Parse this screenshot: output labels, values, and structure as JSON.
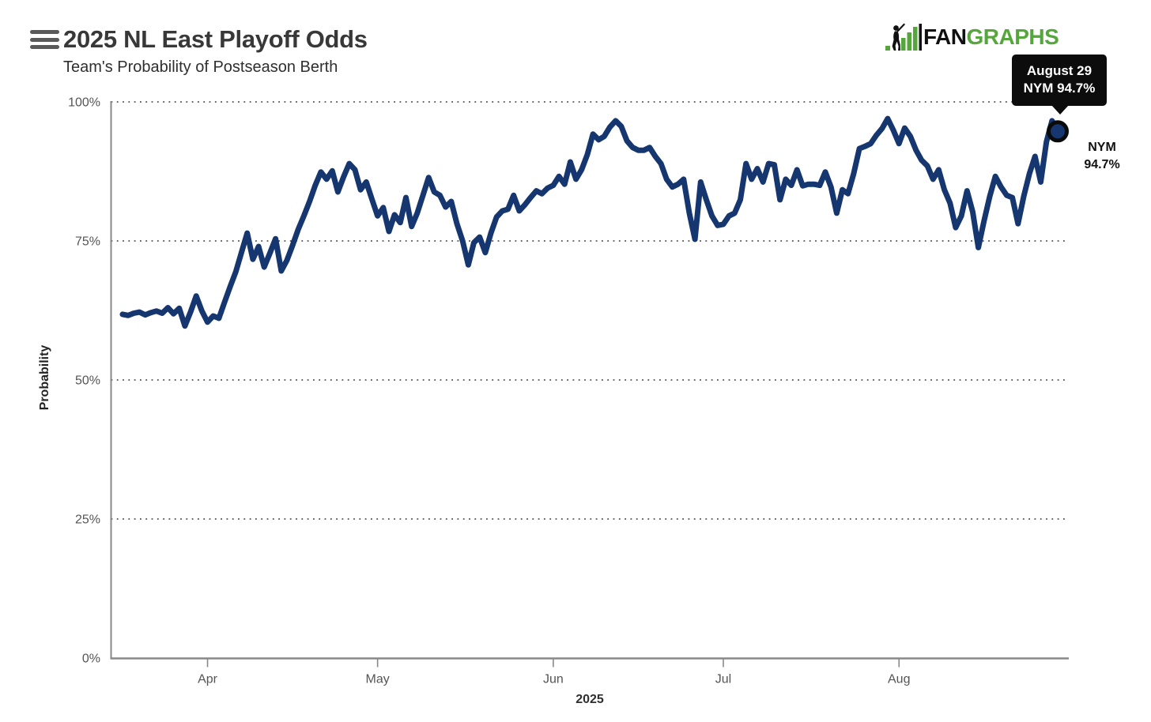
{
  "header": {
    "title": "2025 NL East Playoff Odds",
    "subtitle": "Team's Probability of Postseason Berth",
    "menu_icon": "hamburger-menu-icon"
  },
  "logo": {
    "icon": "fangraphs-batter-bars-icon",
    "fan": "FAN",
    "graphs": "GRAPHS"
  },
  "tooltip": {
    "line1": "August 29",
    "line2": "NYM 94.7%"
  },
  "endpoint_label": {
    "team": "NYM",
    "value": "94.7%"
  },
  "colors": {
    "line": "#15366f",
    "marker_ring": "#0a0a0a",
    "logo_green": "#55a63c",
    "tooltip_bg": "#0c0c0c",
    "tooltip_text": "#ffffff",
    "axis": "#888888",
    "grid_dots": "#333333",
    "tick_text": "#555555"
  },
  "chart_data": {
    "type": "line",
    "title": "2025 NL East Playoff Odds",
    "subtitle": "Team's Probability of Postseason Berth",
    "xlabel": "2025",
    "ylabel": "Probability",
    "ylim": [
      0,
      100
    ],
    "grid": "horizontal dotted at 25/50/75/100",
    "legend_position": "none",
    "y_ticks": [
      {
        "label": "100%",
        "value": 100
      },
      {
        "label": "75%",
        "value": 75
      },
      {
        "label": "50%",
        "value": 50
      },
      {
        "label": "25%",
        "value": 25
      },
      {
        "label": "0%",
        "value": 0
      }
    ],
    "x_ticks": [
      {
        "label": "Apr",
        "index": 15
      },
      {
        "label": "May",
        "index": 45
      },
      {
        "label": "Jun",
        "index": 76
      },
      {
        "label": "Jul",
        "index": 106
      },
      {
        "label": "Aug",
        "index": 137
      }
    ],
    "x_range": "March 17 to August 29, daily",
    "series": [
      {
        "name": "NYM",
        "color": "#15366f",
        "final_value": 94.7,
        "final_date": "August 29",
        "values": [
          61.8,
          61.6,
          62.0,
          62.2,
          61.7,
          62.1,
          62.4,
          62.0,
          63.0,
          61.9,
          62.9,
          59.7,
          62.2,
          65.1,
          62.4,
          60.4,
          61.5,
          61.1,
          64.0,
          66.8,
          69.5,
          73.0,
          76.4,
          71.7,
          74.0,
          70.3,
          72.8,
          75.4,
          69.6,
          71.5,
          74.2,
          77.1,
          79.5,
          82.1,
          85.0,
          87.4,
          86.1,
          87.6,
          83.8,
          86.5,
          88.9,
          87.8,
          84.2,
          85.6,
          82.5,
          79.5,
          81.0,
          76.7,
          79.7,
          78.3,
          82.8,
          77.6,
          80.0,
          83.2,
          86.4,
          83.8,
          83.2,
          81.1,
          82.1,
          78.1,
          75.0,
          70.7,
          74.7,
          75.7,
          72.9,
          76.4,
          79.3,
          80.4,
          80.7,
          83.2,
          80.4,
          81.5,
          82.8,
          84.0,
          83.5,
          84.5,
          85.0,
          86.6,
          85.2,
          89.2,
          86.1,
          87.8,
          90.5,
          94.2,
          93.2,
          93.8,
          95.5,
          96.6,
          95.6,
          93.0,
          91.8,
          91.3,
          91.3,
          91.8,
          90.2,
          88.9,
          86.1,
          84.7,
          85.2,
          86.1,
          80.0,
          75.3,
          85.6,
          82.4,
          79.5,
          77.8,
          78.0,
          79.5,
          80.0,
          82.4,
          88.9,
          86.1,
          88.0,
          85.6,
          88.9,
          88.7,
          82.4,
          86.1,
          85.0,
          87.8,
          84.9,
          85.2,
          85.2,
          85.0,
          87.4,
          84.7,
          80.0,
          84.2,
          83.5,
          87.1,
          91.6,
          92.0,
          92.5,
          94.0,
          95.2,
          97.0,
          94.9,
          92.5,
          95.3,
          93.8,
          91.3,
          89.5,
          88.5,
          86.1,
          87.8,
          84.2,
          81.8,
          77.4,
          79.5,
          84.0,
          80.2,
          73.8,
          78.6,
          83.0,
          86.6,
          84.7,
          83.2,
          82.8,
          78.1,
          83.0,
          87.1,
          90.2,
          85.6,
          92.8,
          96.6,
          94.7
        ]
      }
    ]
  }
}
